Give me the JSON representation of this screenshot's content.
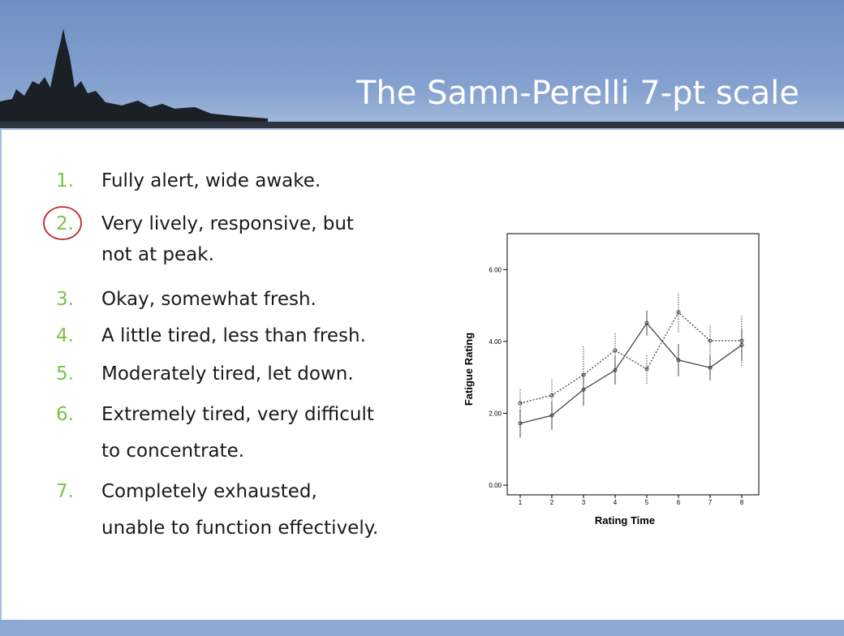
{
  "header": {
    "title": "The Samn-Perelli 7-pt scale"
  },
  "list": [
    {
      "number": "1.",
      "lines": [
        "Fully alert, wide awake."
      ]
    },
    {
      "number": "2.",
      "lines": [
        "Very lively, responsive, but",
        "not at peak."
      ]
    },
    {
      "number": "3.",
      "lines": [
        "Okay, somewhat fresh."
      ]
    },
    {
      "number": "4.",
      "lines": [
        "A little tired, less than fresh."
      ]
    },
    {
      "number": "5.",
      "lines": [
        "Moderately tired, let down."
      ]
    },
    {
      "number": "6.",
      "lines": [
        "Extremely tired, very difficult",
        "to concentrate."
      ]
    },
    {
      "number": "7.",
      "lines": [
        "Completely exhausted,",
        "unable to function effectively."
      ]
    }
  ],
  "chart_data": {
    "type": "line",
    "x_label": "Rating Time",
    "y_label": "Fatigue Rating",
    "categories": [
      "1",
      "2",
      "3",
      "4",
      "5",
      "6",
      "7",
      "8"
    ],
    "series": [
      {
        "color": "#444444",
        "dashed": false,
        "values": [
          1.72,
          1.94,
          2.66,
          3.2,
          4.51,
          3.48,
          3.27,
          3.9
        ],
        "errors": [
          0.4,
          0.4,
          0.45,
          0.4,
          0.35,
          0.45,
          0.35,
          0.45
        ]
      },
      {
        "color": "#444444",
        "dashed": true,
        "values": [
          2.28,
          2.5,
          3.07,
          3.75,
          3.23,
          4.81,
          4.02,
          4.02
        ],
        "errors": [
          0.4,
          0.45,
          0.8,
          0.5,
          0.4,
          0.55,
          0.45,
          0.7
        ]
      }
    ],
    "ylim": [
      -0.27,
      7.0
    ],
    "yticks": [
      {
        "value": 0,
        "label": "0.00"
      },
      {
        "value": 2,
        "label": "2.00"
      },
      {
        "value": 4,
        "label": "4.00"
      },
      {
        "value": 6,
        "label": "6.00"
      }
    ]
  }
}
